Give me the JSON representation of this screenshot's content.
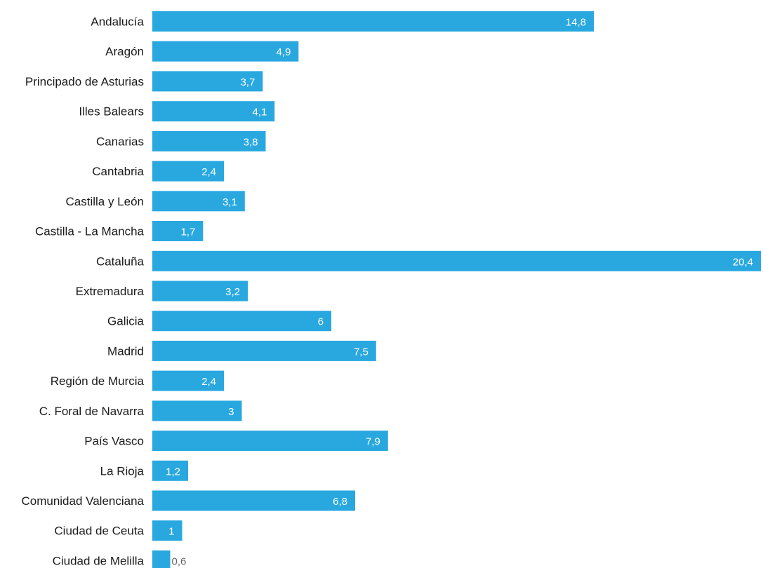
{
  "chart_data": {
    "type": "bar",
    "orientation": "horizontal",
    "title": "",
    "xlabel": "",
    "ylabel": "",
    "xlim": [
      0,
      20.4
    ],
    "grid": false,
    "legend": "none",
    "bar_color": "#29a8e0",
    "label_color_inside": "#ffffff",
    "label_color_outside": "#666666",
    "categories": [
      "Andalucía",
      "Aragón",
      "Principado de Asturias",
      "Illes Balears",
      "Canarias",
      "Cantabria",
      "Castilla y León",
      "Castilla - La Mancha",
      "Cataluña",
      "Extremadura",
      "Galicia",
      "Madrid",
      "Región de Murcia",
      "C. Foral de Navarra",
      "País Vasco",
      "La Rioja",
      "Comunidad Valenciana",
      "Ciudad de Ceuta",
      "Ciudad de Melilla"
    ],
    "values": [
      14.8,
      4.9,
      3.7,
      4.1,
      3.8,
      2.4,
      3.1,
      1.7,
      20.4,
      3.2,
      6,
      7.5,
      2.4,
      3,
      7.9,
      1.2,
      6.8,
      1,
      0.6
    ],
    "value_labels": [
      "14,8",
      "4,9",
      "3,7",
      "4,1",
      "3,8",
      "2,4",
      "3,1",
      "1,7",
      "20,4",
      "3,2",
      "6",
      "7,5",
      "2,4",
      "3",
      "7,9",
      "1,2",
      "6,8",
      "1",
      "0,6"
    ]
  }
}
